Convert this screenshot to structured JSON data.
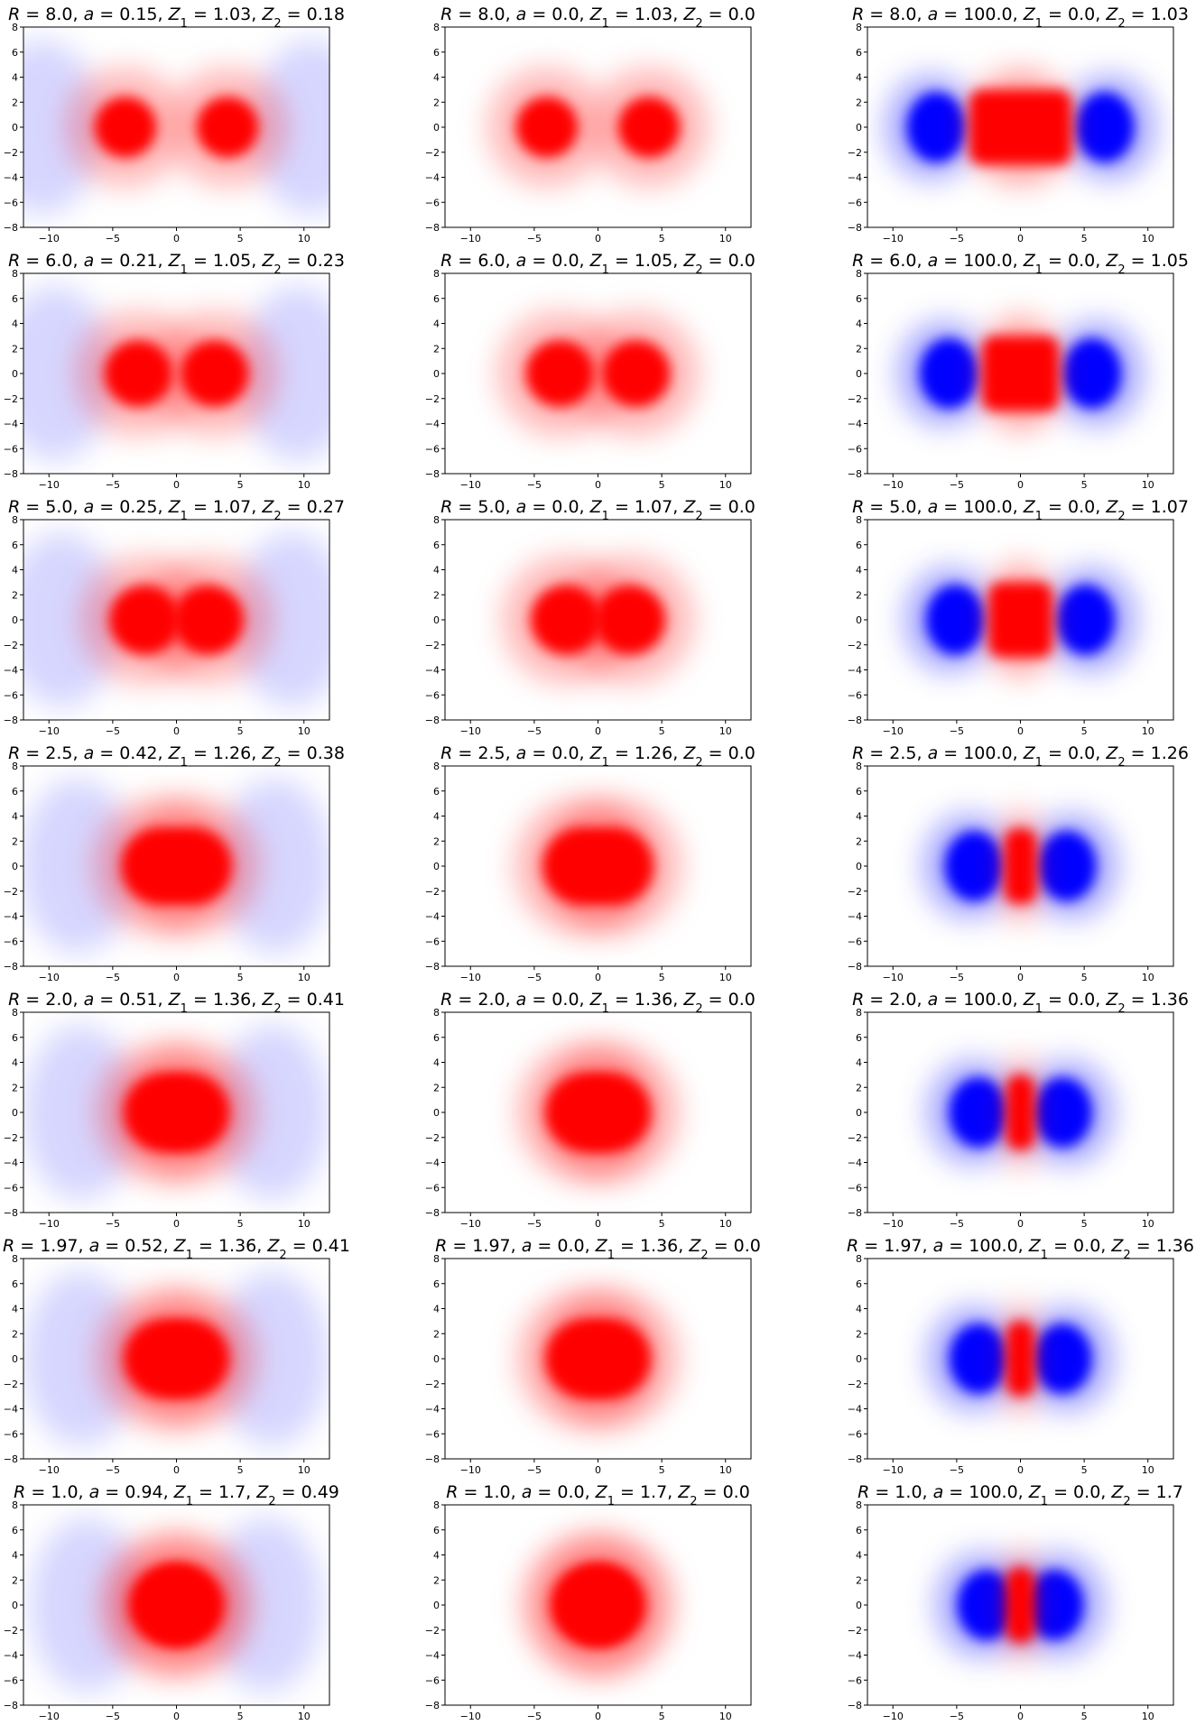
{
  "figure": {
    "colormap": "bwr",
    "colors": {
      "positive": "#ff0000",
      "negative": "#0000ff",
      "zero": "#ffffff",
      "axes": "#000000"
    },
    "x_ticks": [
      "−10",
      "−5",
      "0",
      "5",
      "10"
    ],
    "y_ticks": [
      "8",
      "6",
      "4",
      "2",
      "0",
      "−2",
      "−4",
      "−6",
      "−8"
    ]
  },
  "chart_data": [
    {
      "type": "heatmap",
      "title": {
        "R": "8.0",
        "a": "0.15",
        "Z1": "1.03",
        "Z2": "0.18"
      },
      "xlim": [
        -12,
        12
      ],
      "ylim": [
        -8,
        8
      ],
      "centers": [
        -4.0,
        4.0
      ],
      "Z1": 1.03,
      "Z2": 0.18
    },
    {
      "type": "heatmap",
      "title": {
        "R": "8.0",
        "a": "0.0",
        "Z1": "1.03",
        "Z2": "0.0"
      },
      "xlim": [
        -12,
        12
      ],
      "ylim": [
        -8,
        8
      ],
      "centers": [
        -4.0,
        4.0
      ],
      "Z1": 1.03,
      "Z2": 0.0
    },
    {
      "type": "heatmap",
      "title": {
        "R": "8.0",
        "a": "100.0",
        "Z1": "0.0",
        "Z2": "1.03"
      },
      "xlim": [
        -12,
        12
      ],
      "ylim": [
        -8,
        8
      ],
      "centers": [
        -4.0,
        4.0
      ],
      "Z1": 0.0,
      "Z2": 1.03
    },
    {
      "type": "heatmap",
      "title": {
        "R": "6.0",
        "a": "0.21",
        "Z1": "1.05",
        "Z2": "0.23"
      },
      "xlim": [
        -12,
        12
      ],
      "ylim": [
        -8,
        8
      ],
      "centers": [
        -3.0,
        3.0
      ],
      "Z1": 1.05,
      "Z2": 0.23
    },
    {
      "type": "heatmap",
      "title": {
        "R": "6.0",
        "a": "0.0",
        "Z1": "1.05",
        "Z2": "0.0"
      },
      "xlim": [
        -12,
        12
      ],
      "ylim": [
        -8,
        8
      ],
      "centers": [
        -3.0,
        3.0
      ],
      "Z1": 1.05,
      "Z2": 0.0
    },
    {
      "type": "heatmap",
      "title": {
        "R": "6.0",
        "a": "100.0",
        "Z1": "0.0",
        "Z2": "1.05"
      },
      "xlim": [
        -12,
        12
      ],
      "ylim": [
        -8,
        8
      ],
      "centers": [
        -3.0,
        3.0
      ],
      "Z1": 0.0,
      "Z2": 1.05
    },
    {
      "type": "heatmap",
      "title": {
        "R": "5.0",
        "a": "0.25",
        "Z1": "1.07",
        "Z2": "0.27"
      },
      "xlim": [
        -12,
        12
      ],
      "ylim": [
        -8,
        8
      ],
      "centers": [
        -2.5,
        2.5
      ],
      "Z1": 1.07,
      "Z2": 0.27
    },
    {
      "type": "heatmap",
      "title": {
        "R": "5.0",
        "a": "0.0",
        "Z1": "1.07",
        "Z2": "0.0"
      },
      "xlim": [
        -12,
        12
      ],
      "ylim": [
        -8,
        8
      ],
      "centers": [
        -2.5,
        2.5
      ],
      "Z1": 1.07,
      "Z2": 0.0
    },
    {
      "type": "heatmap",
      "title": {
        "R": "5.0",
        "a": "100.0",
        "Z1": "0.0",
        "Z2": "1.07"
      },
      "xlim": [
        -12,
        12
      ],
      "ylim": [
        -8,
        8
      ],
      "centers": [
        -2.5,
        2.5
      ],
      "Z1": 0.0,
      "Z2": 1.07
    },
    {
      "type": "heatmap",
      "title": {
        "R": "2.5",
        "a": "0.42",
        "Z1": "1.26",
        "Z2": "0.38"
      },
      "xlim": [
        -12,
        12
      ],
      "ylim": [
        -8,
        8
      ],
      "centers": [
        -1.25,
        1.25
      ],
      "Z1": 1.26,
      "Z2": 0.38
    },
    {
      "type": "heatmap",
      "title": {
        "R": "2.5",
        "a": "0.0",
        "Z1": "1.26",
        "Z2": "0.0"
      },
      "xlim": [
        -12,
        12
      ],
      "ylim": [
        -8,
        8
      ],
      "centers": [
        -1.25,
        1.25
      ],
      "Z1": 1.26,
      "Z2": 0.0
    },
    {
      "type": "heatmap",
      "title": {
        "R": "2.5",
        "a": "100.0",
        "Z1": "0.0",
        "Z2": "1.26"
      },
      "xlim": [
        -12,
        12
      ],
      "ylim": [
        -8,
        8
      ],
      "centers": [
        -1.25,
        1.25
      ],
      "Z1": 0.0,
      "Z2": 1.26
    },
    {
      "type": "heatmap",
      "title": {
        "R": "2.0",
        "a": "0.51",
        "Z1": "1.36",
        "Z2": "0.41"
      },
      "xlim": [
        -12,
        12
      ],
      "ylim": [
        -8,
        8
      ],
      "centers": [
        -1.0,
        1.0
      ],
      "Z1": 1.36,
      "Z2": 0.41
    },
    {
      "type": "heatmap",
      "title": {
        "R": "2.0",
        "a": "0.0",
        "Z1": "1.36",
        "Z2": "0.0"
      },
      "xlim": [
        -12,
        12
      ],
      "ylim": [
        -8,
        8
      ],
      "centers": [
        -1.0,
        1.0
      ],
      "Z1": 1.36,
      "Z2": 0.0
    },
    {
      "type": "heatmap",
      "title": {
        "R": "2.0",
        "a": "100.0",
        "Z1": "0.0",
        "Z2": "1.36"
      },
      "xlim": [
        -12,
        12
      ],
      "ylim": [
        -8,
        8
      ],
      "centers": [
        -1.0,
        1.0
      ],
      "Z1": 0.0,
      "Z2": 1.36
    },
    {
      "type": "heatmap",
      "title": {
        "R": "1.97",
        "a": "0.52",
        "Z1": "1.36",
        "Z2": "0.41"
      },
      "xlim": [
        -12,
        12
      ],
      "ylim": [
        -8,
        8
      ],
      "centers": [
        -0.985,
        0.985
      ],
      "Z1": 1.36,
      "Z2": 0.41
    },
    {
      "type": "heatmap",
      "title": {
        "R": "1.97",
        "a": "0.0",
        "Z1": "1.36",
        "Z2": "0.0"
      },
      "xlim": [
        -12,
        12
      ],
      "ylim": [
        -8,
        8
      ],
      "centers": [
        -0.985,
        0.985
      ],
      "Z1": 1.36,
      "Z2": 0.0
    },
    {
      "type": "heatmap",
      "title": {
        "R": "1.97",
        "a": "100.0",
        "Z1": "0.0",
        "Z2": "1.36"
      },
      "xlim": [
        -12,
        12
      ],
      "ylim": [
        -8,
        8
      ],
      "centers": [
        -0.985,
        0.985
      ],
      "Z1": 0.0,
      "Z2": 1.36
    },
    {
      "type": "heatmap",
      "title": {
        "R": "1.0",
        "a": "0.94",
        "Z1": "1.7",
        "Z2": "0.49"
      },
      "xlim": [
        -12,
        12
      ],
      "ylim": [
        -8,
        8
      ],
      "centers": [
        -0.5,
        0.5
      ],
      "Z1": 1.7,
      "Z2": 0.49
    },
    {
      "type": "heatmap",
      "title": {
        "R": "1.0",
        "a": "0.0",
        "Z1": "1.7",
        "Z2": "0.0"
      },
      "xlim": [
        -12,
        12
      ],
      "ylim": [
        -8,
        8
      ],
      "centers": [
        -0.5,
        0.5
      ],
      "Z1": 1.7,
      "Z2": 0.0
    },
    {
      "type": "heatmap",
      "title": {
        "R": "1.0",
        "a": "100.0",
        "Z1": "0.0",
        "Z2": "1.7"
      },
      "xlim": [
        -12,
        12
      ],
      "ylim": [
        -8,
        8
      ],
      "centers": [
        -0.5,
        0.5
      ],
      "Z1": 0.0,
      "Z2": 1.7
    }
  ]
}
